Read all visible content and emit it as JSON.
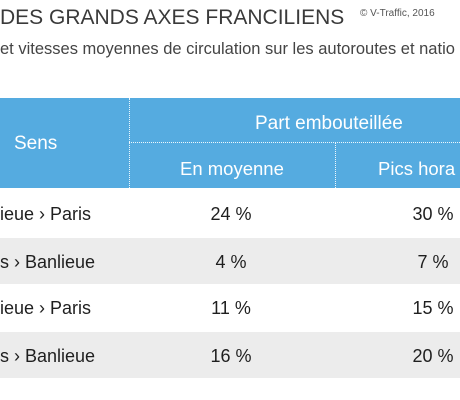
{
  "header": {
    "title": "DES GRANDS AXES FRANCILIENS",
    "credit": "© V-Traffic, 2016",
    "subtitle": "et vitesses moyennes de circulation sur les autoroutes et natio"
  },
  "table": {
    "col_sens": "Sens",
    "col_part": "Part embouteillée",
    "col_moyenne": "En moyenne",
    "col_pics": "Pics hora",
    "rows": [
      {
        "sens": "ieue › Paris",
        "moyenne": "24 %",
        "pics": "30 %"
      },
      {
        "sens": "s › Banlieue",
        "moyenne": "4 %",
        "pics": "7 %"
      },
      {
        "sens": "ieue › Paris",
        "moyenne": "11 %",
        "pics": "15 %"
      },
      {
        "sens": "s › Banlieue",
        "moyenne": "16 %",
        "pics": "20 %"
      }
    ]
  },
  "colors": {
    "header_bg": "#55abe0",
    "alt_row_bg": "#ececec"
  }
}
